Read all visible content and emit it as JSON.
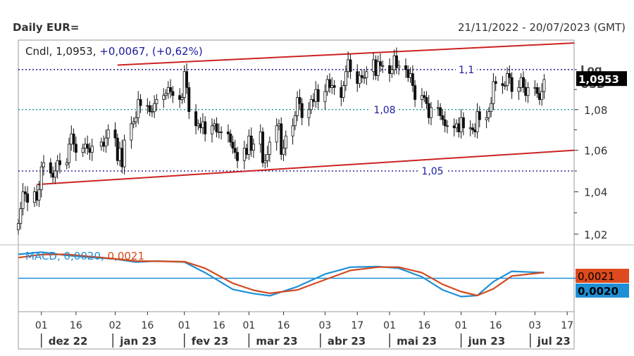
{
  "header": {
    "title": "Daily EUR=",
    "date_range": "21/11/2022 - 20/07/2023 (GMT)"
  },
  "chart_data": [
    {
      "type": "candlestick",
      "legend": {
        "label": "Cndl",
        "last": "1,0953",
        "change": "+0,0067",
        "change_pct": "(+0,62%)"
      },
      "scale": "log",
      "axis_title": "Log",
      "axis_unit": "USD",
      "ylim": [
        1.015,
        1.115
      ],
      "yticks": [
        1.02,
        1.04,
        1.06,
        1.08
      ],
      "ytick_labels": [
        "1,02",
        "1,04",
        "1,06",
        "1,08"
      ],
      "last_price_tag": "1,0953",
      "horizontal_lines": [
        {
          "value": 1.1,
          "label": "1,1",
          "color": "#00008b"
        },
        {
          "value": 1.08,
          "label": "1,08",
          "color": "#008b8b"
        },
        {
          "value": 1.05,
          "label": "1,05",
          "color": "#00008b"
        }
      ],
      "trend_lines": [
        {
          "from": [
            "2023-01-03",
            1.1023
          ],
          "to": [
            "2023-07-20",
            1.1135
          ],
          "color": "#cc2222"
        },
        {
          "from": [
            "2022-11-29",
            1.0435
          ],
          "to": [
            "2023-07-20",
            1.06
          ],
          "color": "#cc2222"
        }
      ],
      "close_series": [
        [
          "2022-11-21",
          1.025
        ],
        [
          "2022-11-22",
          1.032
        ],
        [
          "2022-11-23",
          1.04
        ],
        [
          "2022-11-24",
          1.039
        ],
        [
          "2022-11-25",
          1.035
        ],
        [
          "2022-11-28",
          1.04
        ],
        [
          "2022-11-29",
          1.036
        ],
        [
          "2022-11-30",
          1.041
        ],
        [
          "2022-12-01",
          1.052
        ],
        [
          "2022-12-02",
          1.054
        ],
        [
          "2022-12-05",
          1.049
        ],
        [
          "2022-12-06",
          1.047
        ],
        [
          "2022-12-07",
          1.05
        ],
        [
          "2022-12-08",
          1.055
        ],
        [
          "2022-12-09",
          1.053
        ],
        [
          "2022-12-12",
          1.054
        ],
        [
          "2022-12-13",
          1.063
        ],
        [
          "2022-12-14",
          1.068
        ],
        [
          "2022-12-15",
          1.063
        ],
        [
          "2022-12-16",
          1.059
        ],
        [
          "2022-12-19",
          1.061
        ],
        [
          "2022-12-20",
          1.063
        ],
        [
          "2022-12-21",
          1.061
        ],
        [
          "2022-12-22",
          1.059
        ],
        [
          "2022-12-23",
          1.062
        ],
        [
          "2022-12-27",
          1.064
        ],
        [
          "2022-12-28",
          1.062
        ],
        [
          "2022-12-29",
          1.066
        ],
        [
          "2022-12-30",
          1.07
        ],
        [
          "2023-01-02",
          1.066
        ],
        [
          "2023-01-03",
          1.055
        ],
        [
          "2023-01-04",
          1.061
        ],
        [
          "2023-01-05",
          1.052
        ],
        [
          "2023-01-06",
          1.065
        ],
        [
          "2023-01-09",
          1.073
        ],
        [
          "2023-01-10",
          1.074
        ],
        [
          "2023-01-11",
          1.076
        ],
        [
          "2023-01-12",
          1.085
        ],
        [
          "2023-01-13",
          1.082
        ],
        [
          "2023-01-16",
          1.082
        ],
        [
          "2023-01-17",
          1.079
        ],
        [
          "2023-01-18",
          1.079
        ],
        [
          "2023-01-19",
          1.083
        ],
        [
          "2023-01-20",
          1.085
        ],
        [
          "2023-01-23",
          1.087
        ],
        [
          "2023-01-24",
          1.088
        ],
        [
          "2023-01-25",
          1.091
        ],
        [
          "2023-01-26",
          1.089
        ],
        [
          "2023-01-27",
          1.087
        ],
        [
          "2023-01-30",
          1.085
        ],
        [
          "2023-01-31",
          1.086
        ],
        [
          "2023-02-01",
          1.099
        ],
        [
          "2023-02-02",
          1.091
        ],
        [
          "2023-02-03",
          1.079
        ],
        [
          "2023-02-06",
          1.072
        ],
        [
          "2023-02-07",
          1.073
        ],
        [
          "2023-02-08",
          1.071
        ],
        [
          "2023-02-09",
          1.074
        ],
        [
          "2023-02-10",
          1.068
        ],
        [
          "2023-02-13",
          1.072
        ],
        [
          "2023-02-14",
          1.073
        ],
        [
          "2023-02-15",
          1.069
        ],
        [
          "2023-02-16",
          1.069
        ],
        [
          "2023-02-17",
          1.069
        ],
        [
          "2023-02-20",
          1.068
        ],
        [
          "2023-02-21",
          1.064
        ],
        [
          "2023-02-22",
          1.061
        ],
        [
          "2023-02-23",
          1.059
        ],
        [
          "2023-02-24",
          1.055
        ],
        [
          "2023-02-27",
          1.061
        ],
        [
          "2023-02-28",
          1.058
        ],
        [
          "2023-03-01",
          1.067
        ],
        [
          "2023-03-02",
          1.06
        ],
        [
          "2023-03-03",
          1.063
        ],
        [
          "2023-03-06",
          1.069
        ],
        [
          "2023-03-07",
          1.054
        ],
        [
          "2023-03-08",
          1.055
        ],
        [
          "2023-03-09",
          1.058
        ],
        [
          "2023-03-10",
          1.064
        ],
        [
          "2023-03-13",
          1.072
        ],
        [
          "2023-03-14",
          1.073
        ],
        [
          "2023-03-15",
          1.058
        ],
        [
          "2023-03-16",
          1.061
        ],
        [
          "2023-03-17",
          1.067
        ],
        [
          "2023-03-20",
          1.072
        ],
        [
          "2023-03-21",
          1.077
        ],
        [
          "2023-03-22",
          1.086
        ],
        [
          "2023-03-23",
          1.083
        ],
        [
          "2023-03-24",
          1.076
        ],
        [
          "2023-03-27",
          1.08
        ],
        [
          "2023-03-28",
          1.085
        ],
        [
          "2023-03-29",
          1.084
        ],
        [
          "2023-03-30",
          1.09
        ],
        [
          "2023-03-31",
          1.084
        ],
        [
          "2023-04-03",
          1.089
        ],
        [
          "2023-04-04",
          1.095
        ],
        [
          "2023-04-05",
          1.091
        ],
        [
          "2023-04-06",
          1.092
        ],
        [
          "2023-04-07",
          1.091
        ],
        [
          "2023-04-10",
          1.086
        ],
        [
          "2023-04-11",
          1.092
        ],
        [
          "2023-04-12",
          1.099
        ],
        [
          "2023-04-13",
          1.105
        ],
        [
          "2023-04-14",
          1.099
        ],
        [
          "2023-04-17",
          1.093
        ],
        [
          "2023-04-18",
          1.097
        ],
        [
          "2023-04-19",
          1.096
        ],
        [
          "2023-04-20",
          1.096
        ],
        [
          "2023-04-21",
          1.099
        ],
        [
          "2023-04-24",
          1.105
        ],
        [
          "2023-04-25",
          1.097
        ],
        [
          "2023-04-26",
          1.104
        ],
        [
          "2023-04-27",
          1.102
        ],
        [
          "2023-04-28",
          1.102
        ],
        [
          "2023-05-01",
          1.098
        ],
        [
          "2023-05-02",
          1.1
        ],
        [
          "2023-05-03",
          1.107
        ],
        [
          "2023-05-04",
          1.101
        ],
        [
          "2023-05-05",
          1.102
        ],
        [
          "2023-05-08",
          1.1
        ],
        [
          "2023-05-09",
          1.096
        ],
        [
          "2023-05-10",
          1.098
        ],
        [
          "2023-05-11",
          1.092
        ],
        [
          "2023-05-12",
          1.085
        ],
        [
          "2023-05-15",
          1.087
        ],
        [
          "2023-05-16",
          1.086
        ],
        [
          "2023-05-17",
          1.083
        ],
        [
          "2023-05-18",
          1.076
        ],
        [
          "2023-05-19",
          1.081
        ],
        [
          "2023-05-22",
          1.081
        ],
        [
          "2023-05-23",
          1.077
        ],
        [
          "2023-05-24",
          1.075
        ],
        [
          "2023-05-25",
          1.072
        ],
        [
          "2023-05-26",
          1.072
        ],
        [
          "2023-05-29",
          1.071
        ],
        [
          "2023-05-30",
          1.073
        ],
        [
          "2023-05-31",
          1.069
        ],
        [
          "2023-06-01",
          1.076
        ],
        [
          "2023-06-02",
          1.071
        ],
        [
          "2023-06-05",
          1.071
        ],
        [
          "2023-06-06",
          1.07
        ],
        [
          "2023-06-07",
          1.069
        ],
        [
          "2023-06-08",
          1.079
        ],
        [
          "2023-06-09",
          1.075
        ],
        [
          "2023-06-12",
          1.076
        ],
        [
          "2023-06-13",
          1.079
        ],
        [
          "2023-06-14",
          1.083
        ],
        [
          "2023-06-15",
          1.094
        ],
        [
          "2023-06-16",
          1.093
        ],
        [
          "2023-06-19",
          1.092
        ],
        [
          "2023-06-20",
          1.092
        ],
        [
          "2023-06-21",
          1.098
        ],
        [
          "2023-06-22",
          1.096
        ],
        [
          "2023-06-23",
          1.089
        ],
        [
          "2023-06-26",
          1.091
        ],
        [
          "2023-06-27",
          1.096
        ],
        [
          "2023-06-28",
          1.091
        ],
        [
          "2023-06-29",
          1.087
        ],
        [
          "2023-06-30",
          1.091
        ],
        [
          "2023-07-03",
          1.091
        ],
        [
          "2023-07-04",
          1.088
        ],
        [
          "2023-07-05",
          1.085
        ],
        [
          "2023-07-06",
          1.089
        ],
        [
          "2023-07-07",
          1.095
        ]
      ]
    },
    {
      "type": "line",
      "indicator": "MACD",
      "legend": [
        {
          "name": "MACD",
          "value": "0,0020",
          "color": "#1e8fd6"
        },
        {
          "name": "",
          "value": "0,0021",
          "color": "#d44a1e"
        }
      ],
      "zero_line_color": "#1e8fd6",
      "value_tags": [
        {
          "value": "0,0021",
          "bg": "#dd4a1e",
          "fg": "#000000"
        },
        {
          "value": "0,0020",
          "bg": "#1e8fd6",
          "fg": "#000000"
        }
      ],
      "ylim": [
        -0.012,
        0.012
      ],
      "series": [
        {
          "name": "MACD",
          "color": "#1e8fd6",
          "points": [
            [
              "2022-11-21",
              0.0086
            ],
            [
              "2022-12-01",
              0.0094
            ],
            [
              "2022-12-12",
              0.0082
            ],
            [
              "2022-12-22",
              0.0075
            ],
            [
              "2023-01-02",
              0.0069
            ],
            [
              "2023-01-11",
              0.0058
            ],
            [
              "2023-01-20",
              0.0062
            ],
            [
              "2023-02-01",
              0.0058
            ],
            [
              "2023-02-10",
              0.002
            ],
            [
              "2023-02-22",
              -0.004
            ],
            [
              "2023-03-03",
              -0.0055
            ],
            [
              "2023-03-10",
              -0.0063
            ],
            [
              "2023-03-22",
              -0.003
            ],
            [
              "2023-04-03",
              0.0015
            ],
            [
              "2023-04-14",
              0.004
            ],
            [
              "2023-04-26",
              0.0042
            ],
            [
              "2023-05-05",
              0.0036
            ],
            [
              "2023-05-15",
              0.0005
            ],
            [
              "2023-05-24",
              -0.0042
            ],
            [
              "2023-06-01",
              -0.0066
            ],
            [
              "2023-06-08",
              -0.0062
            ],
            [
              "2023-06-15",
              -0.0012
            ],
            [
              "2023-06-23",
              0.0025
            ],
            [
              "2023-07-07",
              0.002
            ]
          ]
        },
        {
          "name": "",
          "color": "#d44a1e",
          "points": [
            [
              "2022-11-21",
              0.0074
            ],
            [
              "2022-12-01",
              0.0085
            ],
            [
              "2022-12-12",
              0.0086
            ],
            [
              "2022-12-22",
              0.0078
            ],
            [
              "2023-01-02",
              0.007
            ],
            [
              "2023-01-11",
              0.0062
            ],
            [
              "2023-01-20",
              0.0061
            ],
            [
              "2023-02-01",
              0.006
            ],
            [
              "2023-02-10",
              0.0036
            ],
            [
              "2023-02-22",
              -0.0018
            ],
            [
              "2023-03-03",
              -0.0043
            ],
            [
              "2023-03-10",
              -0.0054
            ],
            [
              "2023-03-22",
              -0.0042
            ],
            [
              "2023-04-03",
              -0.0005
            ],
            [
              "2023-04-14",
              0.0028
            ],
            [
              "2023-04-26",
              0.004
            ],
            [
              "2023-05-05",
              0.004
            ],
            [
              "2023-05-15",
              0.002
            ],
            [
              "2023-05-24",
              -0.0022
            ],
            [
              "2023-06-01",
              -0.0048
            ],
            [
              "2023-06-08",
              -0.0062
            ],
            [
              "2023-06-15",
              -0.0038
            ],
            [
              "2023-06-23",
              0.0008
            ],
            [
              "2023-07-07",
              0.0021
            ]
          ]
        }
      ]
    }
  ],
  "x_axis": {
    "range": [
      "2022-11-21",
      "2023-07-20"
    ],
    "day_ticks": [
      {
        "date": "2022-12-01",
        "label": "01"
      },
      {
        "date": "2022-12-16",
        "label": "16"
      },
      {
        "date": "2023-01-02",
        "label": "02"
      },
      {
        "date": "2023-01-16",
        "label": "16"
      },
      {
        "date": "2023-02-01",
        "label": "01"
      },
      {
        "date": "2023-02-16",
        "label": "16"
      },
      {
        "date": "2023-03-01",
        "label": "01"
      },
      {
        "date": "2023-03-16",
        "label": "16"
      },
      {
        "date": "2023-04-03",
        "label": "03"
      },
      {
        "date": "2023-04-17",
        "label": "17"
      },
      {
        "date": "2023-05-01",
        "label": "01"
      },
      {
        "date": "2023-05-16",
        "label": "16"
      },
      {
        "date": "2023-06-01",
        "label": "01"
      },
      {
        "date": "2023-06-16",
        "label": "16"
      },
      {
        "date": "2023-07-03",
        "label": "03"
      },
      {
        "date": "2023-07-17",
        "label": "17"
      }
    ],
    "month_labels": [
      {
        "date": "2022-12-01",
        "label": "dez 22"
      },
      {
        "date": "2023-01-01",
        "label": "jan 23"
      },
      {
        "date": "2023-02-01",
        "label": "fev 23"
      },
      {
        "date": "2023-03-01",
        "label": "mar 23"
      },
      {
        "date": "2023-04-01",
        "label": "abr 23"
      },
      {
        "date": "2023-05-01",
        "label": "mai 23"
      },
      {
        "date": "2023-06-01",
        "label": "jun 23"
      },
      {
        "date": "2023-07-01",
        "label": "jul 23"
      }
    ]
  }
}
